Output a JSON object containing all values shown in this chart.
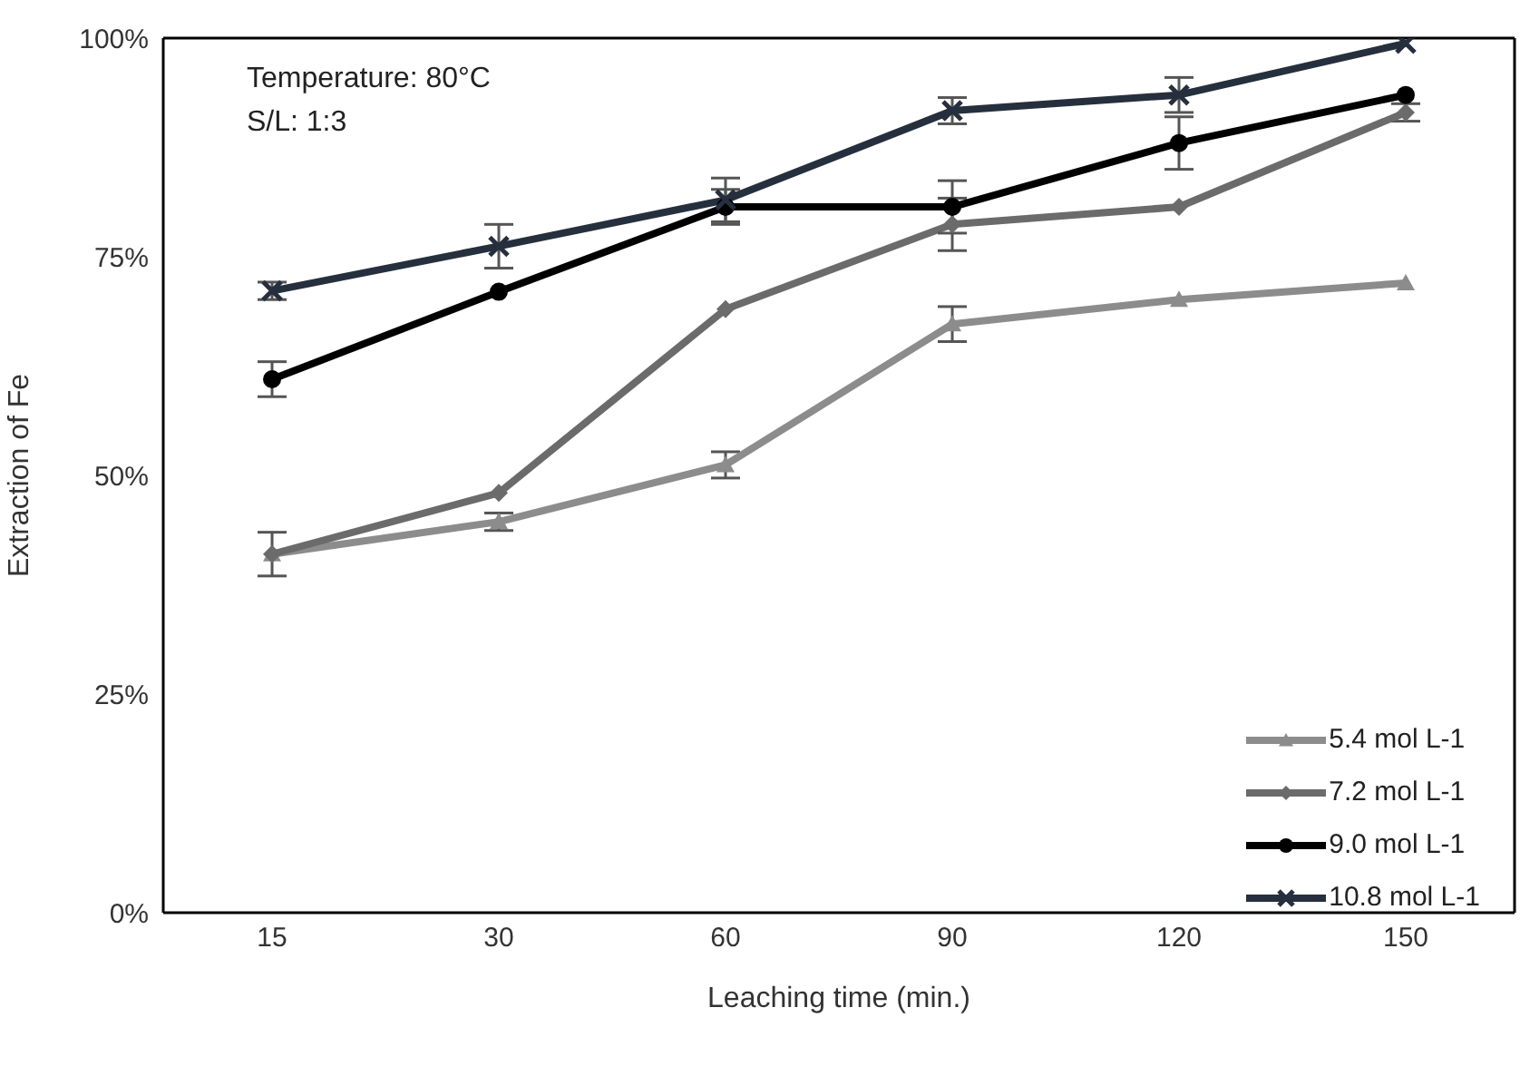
{
  "chart_data": {
    "type": "line",
    "xlabel": "Leaching time (min.)",
    "ylabel": "Extraction of Fe",
    "categories": [
      "15",
      "30",
      "60",
      "90",
      "120",
      "150"
    ],
    "series": [
      {
        "name": "5.4 mol L-1",
        "color": "#8c8c8c",
        "marker": "triangle",
        "values": [
          41,
          44.7,
          51.2,
          67.3,
          70.1,
          72
        ],
        "errors": [
          2.5,
          1,
          1.5,
          2,
          null,
          null
        ]
      },
      {
        "name": "7.2 mol L-1",
        "color": "#6b6b6b",
        "marker": "diamond",
        "values": [
          41,
          48,
          69,
          78.7,
          80.7,
          91.5
        ],
        "errors": [
          null,
          null,
          null,
          3,
          null,
          1
        ]
      },
      {
        "name": "9.0 mol L-1",
        "color": "#000000",
        "marker": "circle",
        "values": [
          61,
          71,
          80.7,
          80.7,
          88,
          93.5
        ],
        "errors": [
          2,
          null,
          2,
          3,
          3,
          null
        ]
      },
      {
        "name": "10.8 mol L-1",
        "color": "#262f3d",
        "marker": "cross",
        "values": [
          71.1,
          76.2,
          81.5,
          91.7,
          93.5,
          99.4
        ],
        "errors": [
          1,
          2.5,
          2.5,
          1.5,
          2,
          null
        ]
      }
    ],
    "ylim": [
      0,
      100
    ],
    "yticks": [
      {
        "value": 0,
        "label": "0%"
      },
      {
        "value": 25,
        "label": "25%"
      },
      {
        "value": 50,
        "label": "50%"
      },
      {
        "value": 75,
        "label": "75%"
      },
      {
        "value": 100,
        "label": "100%"
      }
    ],
    "annotations": [
      "Temperature: 80°C",
      "S/L: 1:3"
    ],
    "legend": "bottom right"
  }
}
